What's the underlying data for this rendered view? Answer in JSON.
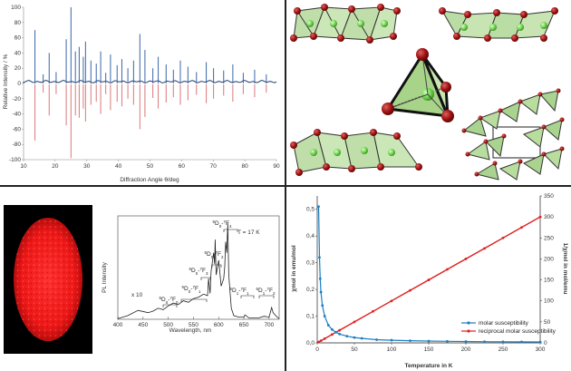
{
  "xrd": {
    "ylabel": "Relative Intensity / %",
    "xlabel": "Diffraction Angle θ/deg",
    "xticks": [
      "10",
      "20",
      "30",
      "40",
      "50",
      "60",
      "70",
      "80",
      "90"
    ],
    "yticks": [
      "100",
      "80",
      "60",
      "40",
      "20",
      "0",
      "-20",
      "-40",
      "-60",
      "-80",
      "-100"
    ],
    "colors": {
      "observed": "#3a66a8",
      "calculated": "#d9787a",
      "baseline": "#1f3f70"
    }
  },
  "lum": {
    "ylabel": "PL Intensity",
    "xlabel": "Wavelength, nm",
    "xticks": [
      "400",
      "450",
      "500",
      "550",
      "600",
      "650",
      "700"
    ],
    "temp": "T = 17 K",
    "factor": "x 10",
    "annotations": [
      {
        "sup": "5",
        "main": "D",
        "sub0": "0",
        "arrow": "-",
        "sup2": "7",
        "main2": "F",
        "sub": "0"
      },
      {
        "sup": "5",
        "main": "D",
        "sub0": "0",
        "arrow": "-",
        "sup2": "7",
        "main2": "F",
        "sub": "1"
      },
      {
        "sup": "5",
        "main": "D",
        "sub0": "0",
        "arrow": "-",
        "sup2": "7",
        "main2": "F",
        "sub": "2"
      },
      {
        "sup": "5",
        "main": "D",
        "sub0": "0",
        "arrow": "-",
        "sup2": "7",
        "main2": "F",
        "sub": "3"
      },
      {
        "sup": "5",
        "main": "D",
        "sub0": "0",
        "arrow": "-",
        "sup2": "7",
        "main2": "F",
        "sub": "4"
      },
      {
        "sup": "5",
        "main": "D",
        "sub0": "1",
        "arrow": "-",
        "sup2": "7",
        "main2": "F",
        "sub": "1"
      },
      {
        "sup": "5",
        "main": "D",
        "sub0": "1",
        "arrow": "-",
        "sup2": "7",
        "main2": "F",
        "sub": "2"
      }
    ]
  },
  "mag": {
    "xlabel": "Temperature in K",
    "ylabel_left": "χmol in emu/mol",
    "ylabel_right": "1/χmol in mol/emu",
    "xticks": [
      "0",
      "50",
      "100",
      "150",
      "200",
      "250",
      "300"
    ],
    "yticks_left": [
      "0,0",
      "0,1",
      "0,2",
      "0,3",
      "0,4",
      "0,5"
    ],
    "yticks_right": [
      "0",
      "50",
      "100",
      "150",
      "200",
      "250",
      "300",
      "350"
    ],
    "colors": {
      "molar": "#1a7ec2",
      "reciprocal": "#e02020",
      "fit": "#000000"
    }
  },
  "chart_data": [
    {
      "type": "line",
      "title": "",
      "xlabel": "Diffraction Angle θ/deg",
      "ylabel": "Relative Intensity / %",
      "xlim": [
        10,
        90
      ],
      "ylim": [
        -100,
        100
      ],
      "grid": false,
      "series": [
        {
          "x": [
            13.6,
            16.2,
            18.1,
            20.3,
            23.5,
            25.0,
            26.4,
            27.6,
            28.9,
            29.6,
            31.3,
            33.0,
            34.4,
            36.0,
            37.5,
            39.6,
            41.1,
            43.0,
            44.8,
            46.8,
            48.4,
            50.9,
            52.6,
            55.1,
            57.4,
            59.6,
            62.0,
            64.7,
            67.8,
            70.1,
            73.3,
            76.2,
            79.5,
            83.1,
            86.8
          ],
          "values": [
            70,
            12,
            40,
            15,
            58,
            100,
            42,
            48,
            35,
            55,
            30,
            26,
            42,
            14,
            38,
            24,
            32,
            20,
            30,
            65,
            44,
            20,
            35,
            25,
            18,
            30,
            22,
            15,
            28,
            20,
            17,
            25,
            14,
            18,
            12
          ]
        },
        {
          "x": [
            13.6,
            16.2,
            18.1,
            20.3,
            23.5,
            25.0,
            26.4,
            27.6,
            28.9,
            29.6,
            31.3,
            33.0,
            34.4,
            36.0,
            37.5,
            39.6,
            41.1,
            43.0,
            44.8,
            46.8,
            48.4,
            50.9,
            52.6,
            55.1,
            57.4,
            59.6,
            62.0,
            64.7,
            67.8,
            70.1,
            73.3,
            76.2,
            79.5,
            83.1,
            86.8
          ],
          "values": [
            -75,
            -12,
            -42,
            -14,
            -55,
            -98,
            -42,
            -45,
            -33,
            -50,
            -28,
            -24,
            -40,
            -14,
            -35,
            -24,
            -30,
            -20,
            -28,
            -60,
            -44,
            -19,
            -33,
            -25,
            -18,
            -28,
            -22,
            -15,
            -26,
            -20,
            -16,
            -24,
            -14,
            -18,
            -12
          ]
        }
      ]
    },
    {
      "type": "line",
      "title": "",
      "xlabel": "Wavelength, nm",
      "ylabel": "PL Intensity",
      "xlim": [
        400,
        720
      ],
      "series": [
        {
          "x": [
            400,
            420,
            440,
            460,
            470,
            480,
            490,
            500,
            510,
            520,
            530,
            540,
            550,
            560,
            570,
            578,
            580,
            583,
            585,
            590,
            592,
            593,
            595,
            600,
            605,
            610,
            612,
            614,
            616,
            618,
            620,
            625,
            630,
            640,
            650,
            652,
            660,
            680,
            690,
            700,
            702,
            705,
            708,
            712,
            716,
            720
          ],
          "values": [
            0.1,
            0.5,
            1.2,
            0.9,
            1.1,
            1.5,
            1.3,
            1.8,
            2.2,
            2.0,
            2.5,
            2.3,
            2.8,
            3.0,
            3.4,
            3.2,
            5.5,
            3.5,
            6.5,
            9.0,
            7.5,
            10.8,
            6.0,
            8.0,
            4.5,
            5.5,
            7.0,
            10.5,
            9.0,
            13.0,
            6.0,
            1.5,
            0.5,
            0.3,
            0.3,
            0.6,
            0.2,
            0.2,
            0.4,
            0.3,
            0.8,
            1.6,
            0.9,
            0.6,
            0.3,
            0.1
          ]
        }
      ]
    },
    {
      "type": "line",
      "title": "",
      "xlabel": "Temperature in K",
      "ylabel": "χmol in emu/mol",
      "xlim": [
        0,
        300
      ],
      "ylim": [
        0,
        0.55
      ],
      "y2lim": [
        0,
        350
      ],
      "grid": false,
      "series": [
        {
          "name": "molar susceptibility",
          "x": [
            1.8,
            3,
            4,
            5,
            7,
            10,
            15,
            20,
            25,
            30,
            40,
            50,
            60,
            80,
            100,
            125,
            150,
            175,
            200,
            225,
            250,
            275,
            300
          ],
          "values": [
            0.51,
            0.32,
            0.24,
            0.19,
            0.14,
            0.1,
            0.066,
            0.05,
            0.04,
            0.033,
            0.025,
            0.02,
            0.017,
            0.012,
            0.01,
            0.008,
            0.0067,
            0.0057,
            0.005,
            0.0044,
            0.004,
            0.0036,
            0.0033
          ]
        },
        {
          "name": "reciprocal molar susceptibility",
          "x": [
            1.8,
            5,
            10,
            20,
            30,
            50,
            75,
            100,
            125,
            150,
            175,
            200,
            225,
            250,
            275,
            300
          ],
          "values": [
            2,
            5,
            10,
            20,
            30,
            50,
            75,
            100,
            125,
            150,
            175,
            200,
            225,
            250,
            275,
            300
          ]
        }
      ]
    }
  ]
}
